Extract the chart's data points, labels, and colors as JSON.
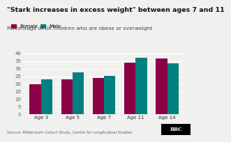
{
  "title": "\"Stark increases in excess weight\" between ages 7 and 11",
  "subtitle": "Percentage of UK children who are obese or overweight",
  "source": "Source: Millennium Cohort Study, Centre for Longitudinal Studies",
  "categories": [
    "Age 3",
    "Age 5",
    "Age 7",
    "Age 11",
    "Age 14"
  ],
  "female_values": [
    20,
    23,
    24,
    34,
    36.5
  ],
  "male_values": [
    23,
    27.5,
    25.5,
    37,
    33.5
  ],
  "female_color": "#8B0047",
  "male_color": "#008080",
  "background_color": "#f0f0ee",
  "ylim": [
    0,
    40
  ],
  "yticks": [
    0,
    5,
    10,
    15,
    20,
    25,
    30,
    35,
    40
  ],
  "legend_female": "Female",
  "legend_male": "Male",
  "title_fontsize": 6.8,
  "subtitle_fontsize": 5.4,
  "tick_fontsize": 5.0,
  "legend_fontsize": 5.2,
  "source_fontsize": 4.0,
  "bar_width": 0.36
}
